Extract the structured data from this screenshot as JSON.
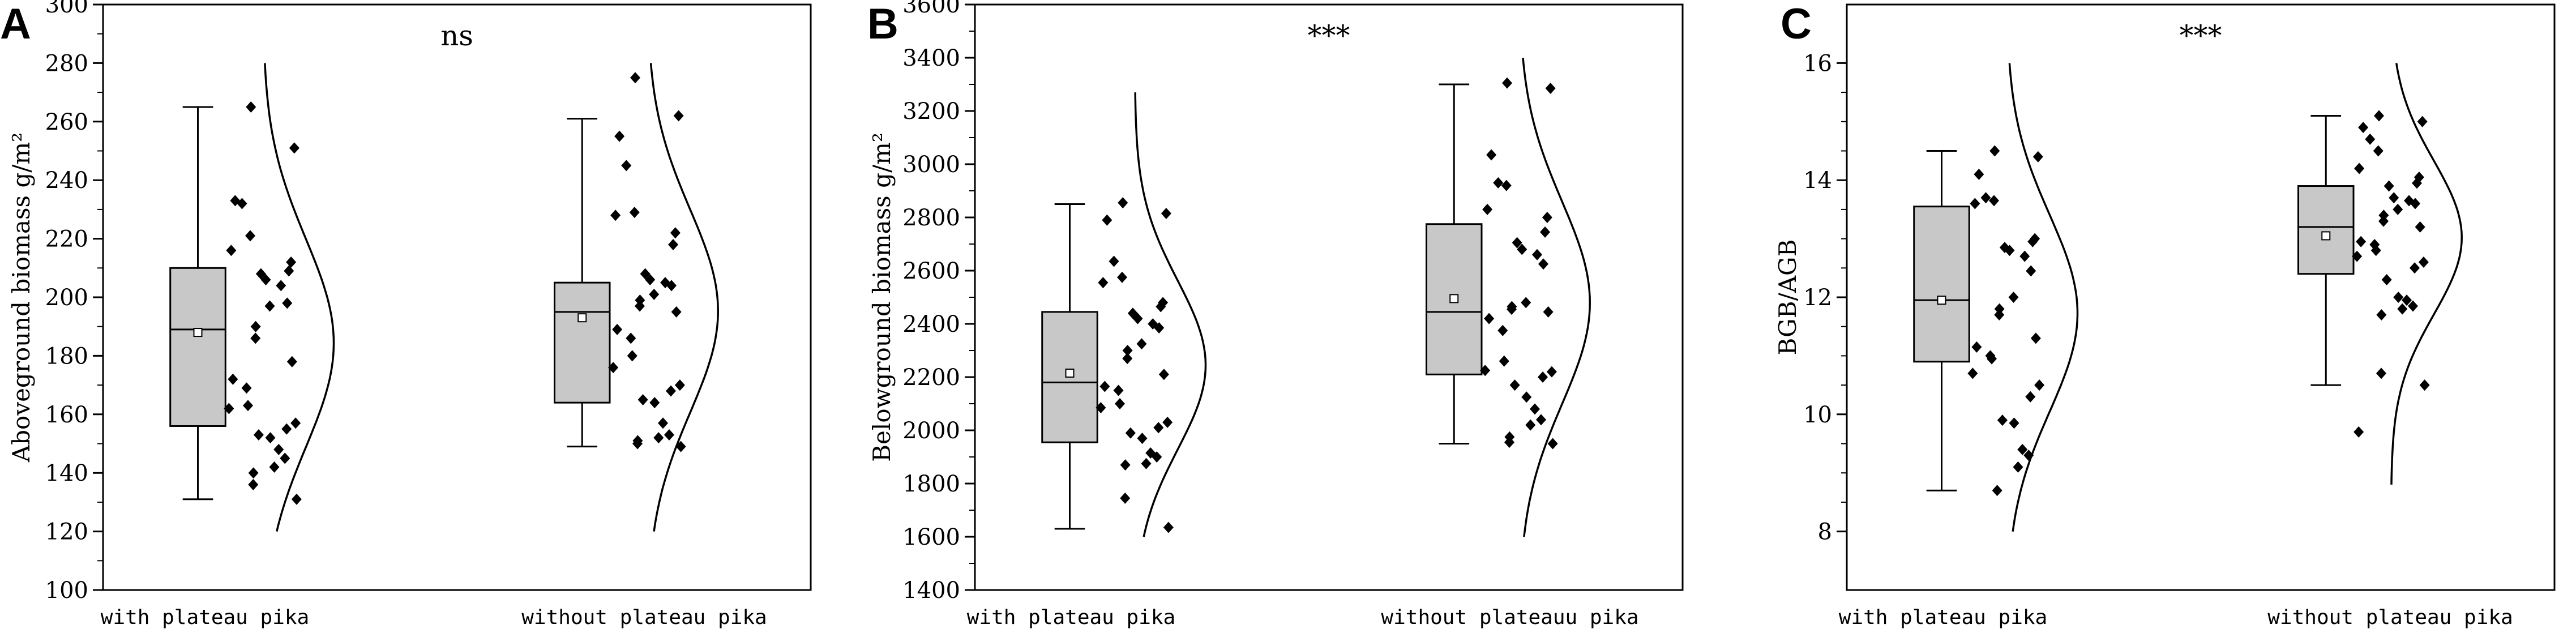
{
  "chart_data": [
    {
      "panel_label": "A",
      "type": "box",
      "significance": "ns",
      "ylabel": "Aboveground biomass g/m²",
      "ylim": [
        100,
        300
      ],
      "yticks": [
        100,
        120,
        140,
        160,
        180,
        200,
        220,
        240,
        260,
        280,
        300
      ],
      "groups": [
        {
          "label": "with plateau pika",
          "box": {
            "whisker_low": 131,
            "q1": 156,
            "median": 189,
            "q3": 210,
            "whisker_high": 265,
            "mean": 188
          },
          "points": [
            265,
            251,
            233,
            232,
            221,
            216,
            212,
            209,
            208,
            206,
            204,
            198,
            197,
            190,
            186,
            178,
            172,
            169,
            163,
            162,
            157,
            155,
            153,
            152,
            148,
            145,
            142,
            140,
            136,
            131
          ],
          "curve_range": [
            120,
            280
          ]
        },
        {
          "label": "without plateau pika",
          "box": {
            "whisker_low": 149,
            "q1": 164,
            "median": 195,
            "q3": 205,
            "whisker_high": 261,
            "mean": 193
          },
          "points": [
            275,
            262,
            255,
            245,
            229,
            228,
            222,
            218,
            208,
            206,
            205,
            204,
            201,
            199,
            197,
            195,
            189,
            186,
            180,
            176,
            170,
            168,
            165,
            164,
            157,
            153,
            152,
            151,
            150,
            149
          ],
          "curve_range": [
            120,
            280
          ]
        }
      ]
    },
    {
      "panel_label": "B",
      "type": "box",
      "significance": "***",
      "ylabel": "Belowground biomass g/m²",
      "ylim": [
        1400,
        3600
      ],
      "yticks": [
        1400,
        1600,
        1800,
        2000,
        2200,
        2400,
        2600,
        2800,
        3000,
        3200,
        3400,
        3600
      ],
      "groups": [
        {
          "label": "with plateau pika",
          "box": {
            "whisker_low": 1630,
            "q1": 1955,
            "median": 2180,
            "q3": 2445,
            "whisker_high": 2850,
            "mean": 2215
          },
          "points": [
            2855,
            2815,
            2790,
            2635,
            2575,
            2555,
            2480,
            2465,
            2440,
            2420,
            2400,
            2385,
            2325,
            2300,
            2270,
            2210,
            2165,
            2150,
            2100,
            2085,
            2030,
            2010,
            1990,
            1970,
            1915,
            1900,
            1875,
            1870,
            1745,
            1635
          ],
          "curve_range": [
            1600,
            3270
          ]
        },
        {
          "label": "without plateauu pika",
          "box": {
            "whisker_low": 1950,
            "q1": 2210,
            "median": 2445,
            "q3": 2775,
            "whisker_high": 3300,
            "mean": 2495
          },
          "points": [
            3305,
            3285,
            3035,
            2930,
            2920,
            2830,
            2800,
            2745,
            2705,
            2680,
            2660,
            2625,
            2480,
            2465,
            2455,
            2445,
            2420,
            2375,
            2260,
            2225,
            2220,
            2200,
            2170,
            2125,
            2080,
            2040,
            2020,
            1975,
            1955,
            1950
          ],
          "curve_range": [
            1600,
            3400
          ]
        }
      ]
    },
    {
      "panel_label": "C",
      "type": "box",
      "significance": "***",
      "ylabel": "BGB/AGB",
      "ylim": [
        7,
        17
      ],
      "yticks": [
        8,
        10,
        12,
        14,
        16
      ],
      "groups": [
        {
          "label": "with plateau pika",
          "box": {
            "whisker_low": 8.7,
            "q1": 10.9,
            "median": 11.95,
            "q3": 13.55,
            "whisker_high": 14.5,
            "mean": 11.95
          },
          "points": [
            14.5,
            14.4,
            14.1,
            13.7,
            13.65,
            13.6,
            13.0,
            12.95,
            12.85,
            12.8,
            12.7,
            12.45,
            12.0,
            11.8,
            11.7,
            11.3,
            11.15,
            11.0,
            10.95,
            10.7,
            10.5,
            10.3,
            9.9,
            9.85,
            9.4,
            9.3,
            9.1,
            8.7
          ],
          "curve_range": [
            8.0,
            16.0
          ]
        },
        {
          "label": "without plateau pika",
          "box": {
            "whisker_low": 10.5,
            "q1": 12.4,
            "median": 13.2,
            "q3": 13.9,
            "whisker_high": 15.1,
            "mean": 13.05
          },
          "points": [
            15.1,
            15.0,
            14.9,
            14.7,
            14.5,
            14.2,
            14.05,
            13.95,
            13.9,
            13.7,
            13.65,
            13.6,
            13.5,
            13.4,
            13.3,
            13.2,
            12.95,
            12.9,
            12.8,
            12.7,
            12.6,
            12.5,
            12.3,
            12.0,
            11.95,
            11.85,
            11.8,
            11.7,
            10.7,
            10.5,
            9.7
          ],
          "curve_range": [
            8.8,
            16.0
          ]
        }
      ]
    }
  ]
}
